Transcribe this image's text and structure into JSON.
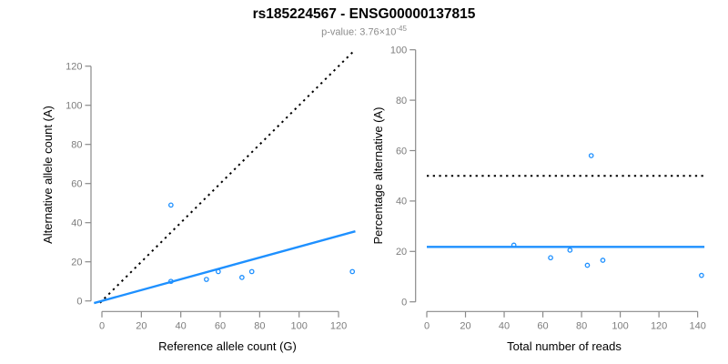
{
  "figure": {
    "title": "rs185224567 - ENSG00000137815",
    "subtitle_prefix": "p-value: 3.76×10",
    "subtitle_exponent": "-45"
  },
  "colors": {
    "accent_blue": "#1E90FF",
    "reference_line_black": "#000000",
    "axis_gray": "#8a8a8a",
    "tick_label_gray": "#7d7d7d",
    "axis_title_black": "#000000",
    "title_black": "#000000",
    "subtitle_gray": "#8c8c8c",
    "background": "#ffffff"
  },
  "chart_data": [
    {
      "type": "scatter",
      "xlabel": "Reference allele count (G)",
      "ylabel": "Alternative allele count (A)",
      "xlim": [
        0,
        128
      ],
      "ylim": [
        0,
        128
      ],
      "xticks": [
        0,
        20,
        40,
        60,
        80,
        100,
        120
      ],
      "yticks": [
        0,
        20,
        40,
        60,
        80,
        100,
        120
      ],
      "grid": false,
      "legend": "none",
      "point_style": {
        "shape": "open-circle",
        "color": "#1E90FF"
      },
      "points": [
        [
          35,
          49
        ],
        [
          35,
          10
        ],
        [
          53,
          11
        ],
        [
          59,
          15
        ],
        [
          71,
          12
        ],
        [
          76,
          15
        ],
        [
          127,
          15
        ]
      ],
      "lines": [
        {
          "name": "identity-line",
          "style": "dotted",
          "color": "#000000",
          "width": 2,
          "from": [
            -1,
            -1
          ],
          "to": [
            127.5,
            127.5
          ]
        },
        {
          "name": "regression-line",
          "style": "solid",
          "color": "#1E90FF",
          "width": 2.4,
          "from": [
            -4,
            -1.1
          ],
          "to": [
            128.5,
            35.6
          ]
        }
      ]
    },
    {
      "type": "scatter",
      "xlabel": "Total number of reads",
      "ylabel": "Percentage alternative (A)",
      "xlim": [
        0,
        145
      ],
      "ylim": [
        0,
        100
      ],
      "xticks": [
        0,
        20,
        40,
        60,
        80,
        100,
        120,
        140
      ],
      "yticks": [
        0,
        20,
        40,
        60,
        80,
        100
      ],
      "grid": false,
      "legend": "none",
      "point_style": {
        "shape": "open-circle",
        "color": "#1E90FF"
      },
      "points": [
        [
          45,
          22.5
        ],
        [
          64,
          17.5
        ],
        [
          74,
          20.5
        ],
        [
          83,
          14.5
        ],
        [
          85,
          58
        ],
        [
          91,
          16.5
        ],
        [
          142,
          10.5
        ]
      ],
      "lines": [
        {
          "name": "fifty-percent-line",
          "style": "dotted",
          "color": "#000000",
          "width": 2,
          "from": [
            0,
            50
          ],
          "to": [
            143.5,
            50
          ]
        },
        {
          "name": "mean-percentage-line",
          "style": "solid",
          "color": "#1E90FF",
          "width": 2.4,
          "from": [
            0,
            21.8
          ],
          "to": [
            143.5,
            21.8
          ]
        }
      ]
    }
  ]
}
